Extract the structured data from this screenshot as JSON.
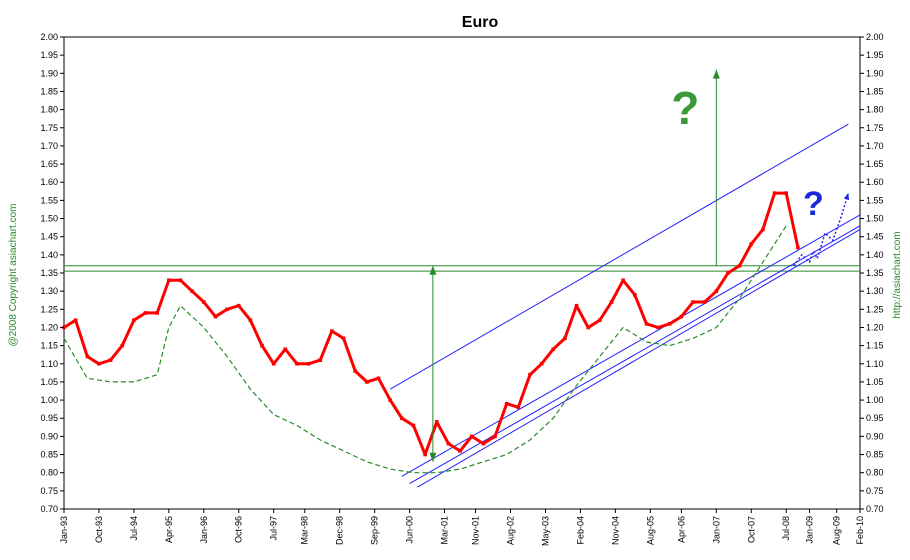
{
  "chart_data": {
    "type": "line",
    "title": "Euro",
    "left_label": "@2008 Copyright asiachart.com",
    "right_label": "http://asiachart.com",
    "xlabel": "",
    "ylabel": "",
    "ylim": [
      0.7,
      2.0
    ],
    "xlim": [
      "1993-01",
      "2010-02"
    ],
    "y_ticks": [
      "0.70",
      "0.75",
      "0.80",
      "0.85",
      "0.90",
      "0.95",
      "1.00",
      "1.05",
      "1.10",
      "1.15",
      "1.20",
      "1.25",
      "1.30",
      "1.35",
      "1.40",
      "1.45",
      "1.50",
      "1.55",
      "1.60",
      "1.65",
      "1.70",
      "1.75",
      "1.80",
      "1.85",
      "1.90",
      "1.95",
      "2.00"
    ],
    "x_ticks": [
      {
        "label": "Jan-93",
        "date": "1993-01"
      },
      {
        "label": "Oct-93",
        "date": "1993-10"
      },
      {
        "label": "Jul-94",
        "date": "1994-07"
      },
      {
        "label": "Apr-95",
        "date": "1995-04"
      },
      {
        "label": "Jan-96",
        "date": "1996-01"
      },
      {
        "label": "Oct-96",
        "date": "1996-10"
      },
      {
        "label": "Jul-97",
        "date": "1997-07"
      },
      {
        "label": "Mar-98",
        "date": "1998-03"
      },
      {
        "label": "Dec-98",
        "date": "1998-12"
      },
      {
        "label": "Sep-99",
        "date": "1999-09"
      },
      {
        "label": "Jun-00",
        "date": "2000-06"
      },
      {
        "label": "Mar-01",
        "date": "2001-03"
      },
      {
        "label": "Nov-01",
        "date": "2001-11"
      },
      {
        "label": "Aug-02",
        "date": "2002-08"
      },
      {
        "label": "May-03",
        "date": "2003-05"
      },
      {
        "label": "Feb-04",
        "date": "2004-02"
      },
      {
        "label": "Nov-04",
        "date": "2004-11"
      },
      {
        "label": "Aug-05",
        "date": "2005-08"
      },
      {
        "label": "Apr-06",
        "date": "2006-04"
      },
      {
        "label": "Jan-07",
        "date": "2007-01"
      },
      {
        "label": "Oct-07",
        "date": "2007-10"
      },
      {
        "label": "Jul-08",
        "date": "2008-07"
      },
      {
        "label": "Jan-09",
        "date": "2009-01"
      },
      {
        "label": "Aug-09",
        "date": "2009-08"
      },
      {
        "label": "Feb-10",
        "date": "2010-02"
      }
    ],
    "series": [
      {
        "role": "price",
        "color": "#ff0000",
        "points": [
          [
            "1993-01",
            1.2
          ],
          [
            "1993-04",
            1.22
          ],
          [
            "1993-07",
            1.12
          ],
          [
            "1993-10",
            1.1
          ],
          [
            "1994-01",
            1.11
          ],
          [
            "1994-04",
            1.15
          ],
          [
            "1994-07",
            1.22
          ],
          [
            "1994-10",
            1.24
          ],
          [
            "1995-01",
            1.24
          ],
          [
            "1995-04",
            1.33
          ],
          [
            "1995-07",
            1.33
          ],
          [
            "1995-10",
            1.3
          ],
          [
            "1996-01",
            1.27
          ],
          [
            "1996-04",
            1.23
          ],
          [
            "1996-07",
            1.25
          ],
          [
            "1996-10",
            1.26
          ],
          [
            "1997-01",
            1.22
          ],
          [
            "1997-04",
            1.15
          ],
          [
            "1997-07",
            1.1
          ],
          [
            "1997-10",
            1.14
          ],
          [
            "1998-01",
            1.1
          ],
          [
            "1998-04",
            1.1
          ],
          [
            "1998-07",
            1.11
          ],
          [
            "1998-10",
            1.19
          ],
          [
            "1999-01",
            1.17
          ],
          [
            "1999-04",
            1.08
          ],
          [
            "1999-07",
            1.05
          ],
          [
            "1999-10",
            1.06
          ],
          [
            "2000-01",
            1.0
          ],
          [
            "2000-04",
            0.95
          ],
          [
            "2000-07",
            0.93
          ],
          [
            "2000-10",
            0.85
          ],
          [
            "2001-01",
            0.94
          ],
          [
            "2001-04",
            0.88
          ],
          [
            "2001-07",
            0.86
          ],
          [
            "2001-10",
            0.9
          ],
          [
            "2002-01",
            0.88
          ],
          [
            "2002-04",
            0.9
          ],
          [
            "2002-07",
            0.99
          ],
          [
            "2002-10",
            0.98
          ],
          [
            "2003-01",
            1.07
          ],
          [
            "2003-04",
            1.1
          ],
          [
            "2003-07",
            1.14
          ],
          [
            "2003-10",
            1.17
          ],
          [
            "2004-01",
            1.26
          ],
          [
            "2004-04",
            1.2
          ],
          [
            "2004-07",
            1.22
          ],
          [
            "2004-10",
            1.27
          ],
          [
            "2005-01",
            1.33
          ],
          [
            "2005-04",
            1.29
          ],
          [
            "2005-07",
            1.21
          ],
          [
            "2005-10",
            1.2
          ],
          [
            "2006-01",
            1.21
          ],
          [
            "2006-04",
            1.23
          ],
          [
            "2006-07",
            1.27
          ],
          [
            "2006-10",
            1.27
          ],
          [
            "2007-01",
            1.3
          ],
          [
            "2007-04",
            1.35
          ],
          [
            "2007-07",
            1.37
          ],
          [
            "2007-10",
            1.43
          ],
          [
            "2008-01",
            1.47
          ],
          [
            "2008-04",
            1.57
          ],
          [
            "2008-07",
            1.57
          ],
          [
            "2008-10",
            1.42
          ]
        ]
      },
      {
        "role": "moving-average",
        "color": "#2a8a2a",
        "points": [
          [
            "1993-01",
            1.17
          ],
          [
            "1993-07",
            1.06
          ],
          [
            "1994-01",
            1.05
          ],
          [
            "1994-07",
            1.05
          ],
          [
            "1995-01",
            1.07
          ],
          [
            "1995-04",
            1.2
          ],
          [
            "1995-07",
            1.26
          ],
          [
            "1996-01",
            1.2
          ],
          [
            "1996-07",
            1.12
          ],
          [
            "1997-01",
            1.03
          ],
          [
            "1997-07",
            0.96
          ],
          [
            "1998-01",
            0.93
          ],
          [
            "1998-07",
            0.89
          ],
          [
            "1999-01",
            0.86
          ],
          [
            "1999-07",
            0.83
          ],
          [
            "2000-01",
            0.81
          ],
          [
            "2000-07",
            0.8
          ],
          [
            "2001-01",
            0.8
          ],
          [
            "2001-07",
            0.81
          ],
          [
            "2002-01",
            0.83
          ],
          [
            "2002-07",
            0.85
          ],
          [
            "2003-01",
            0.89
          ],
          [
            "2003-07",
            0.95
          ],
          [
            "2004-01",
            1.04
          ],
          [
            "2004-07",
            1.12
          ],
          [
            "2005-01",
            1.2
          ],
          [
            "2005-07",
            1.16
          ],
          [
            "2006-01",
            1.15
          ],
          [
            "2006-07",
            1.17
          ],
          [
            "2007-01",
            1.2
          ],
          [
            "2007-07",
            1.28
          ],
          [
            "2008-01",
            1.38
          ],
          [
            "2008-07",
            1.48
          ]
        ]
      },
      {
        "role": "projection",
        "color": "#2020ff",
        "points": [
          [
            "2008-09",
            1.37
          ],
          [
            "2008-11",
            1.4
          ],
          [
            "2009-01",
            1.38
          ],
          [
            "2009-02",
            1.41
          ],
          [
            "2009-03",
            1.39
          ],
          [
            "2009-05",
            1.46
          ],
          [
            "2009-07",
            1.44
          ],
          [
            "2009-09",
            1.5
          ],
          [
            "2009-11",
            1.57
          ]
        ]
      }
    ],
    "trend_lines": [
      {
        "role": "channel-upper",
        "color": "#2020ff",
        "from": [
          "2000-01",
          1.03
        ],
        "to": [
          "2009-11",
          1.76
        ]
      },
      {
        "role": "channel-middle",
        "color": "#2020ff",
        "from": [
          "2000-04",
          0.79
        ],
        "to": [
          "2010-02",
          1.51
        ]
      },
      {
        "role": "channel-lower-1",
        "color": "#2020ff",
        "from": [
          "2000-06",
          0.77
        ],
        "to": [
          "2010-02",
          1.48
        ]
      },
      {
        "role": "channel-lower-2",
        "color": "#2020ff",
        "from": [
          "2000-08",
          0.76
        ],
        "to": [
          "2010-02",
          1.47
        ]
      }
    ],
    "horizontal_lines": [
      {
        "color": "#2a8a2a",
        "y": 1.37
      },
      {
        "color": "#2a8a2a",
        "y": 1.355
      }
    ],
    "arrows": [
      {
        "color": "#2a8a2a",
        "x": "2000-12",
        "y_from": 0.83,
        "y_to": 1.37,
        "double": true
      },
      {
        "color": "#2a8a2a",
        "x": "2007-01",
        "y_from": 1.37,
        "y_to": 1.91,
        "double": false
      }
    ],
    "annotations": [
      {
        "text": "?",
        "color": "#3a9a3a",
        "x": "2006-05",
        "y": 1.76
      },
      {
        "text": "?",
        "color": "#1a2ad8",
        "x": "2009-02",
        "y": 1.51
      }
    ],
    "grid": false,
    "legend": "none"
  }
}
